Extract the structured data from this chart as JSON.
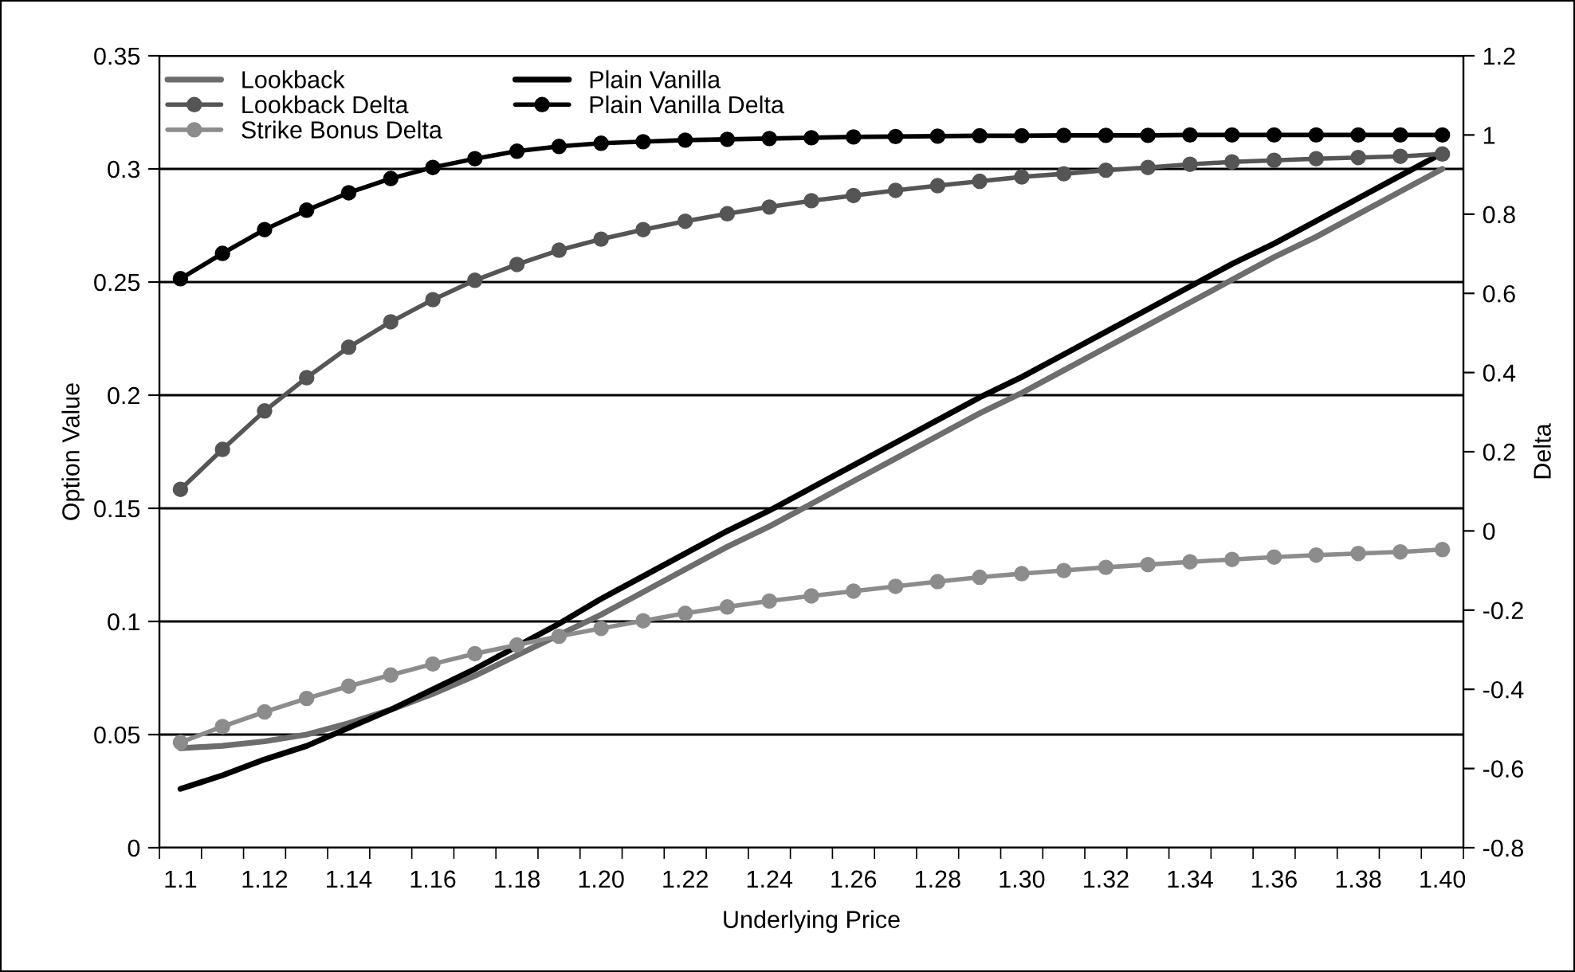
{
  "chart_data": {
    "type": "line",
    "xlabel": "Underlying Price",
    "ylabel": "Option Value",
    "y2label": "Delta",
    "categories": [
      "1.1",
      null,
      "1.12",
      null,
      "1.14",
      null,
      "1.16",
      null,
      "1.18",
      null,
      "1.20",
      null,
      "1.22",
      null,
      "1.24",
      null,
      "1.26",
      null,
      "1.28",
      null,
      "1.30",
      null,
      "1.32",
      null,
      "1.34",
      null,
      "1.36",
      null,
      "1.38",
      null,
      "1.40"
    ],
    "ylim": [
      0,
      0.35
    ],
    "yticks": [
      0,
      0.05,
      0.1,
      0.15,
      0.2,
      0.25,
      0.3,
      0.35
    ],
    "y2lim": [
      -0.8,
      1.2
    ],
    "y2ticks": [
      -0.8,
      -0.6,
      -0.4,
      -0.2,
      0,
      0.2,
      0.4,
      0.6,
      0.8,
      1,
      1.2
    ],
    "grid": "y",
    "legend": "top left",
    "line_style": "solid",
    "series": [
      {
        "name": "Lookback",
        "color": "#6d6d6d",
        "marker": "none",
        "values": [
          0.044,
          0.045,
          0.047,
          0.05,
          0.055,
          0.061,
          0.068,
          0.076,
          0.085,
          0.094,
          0.103,
          0.113,
          0.123,
          0.133,
          0.142,
          0.152,
          0.162,
          0.172,
          0.182,
          0.192,
          0.201,
          0.211,
          0.221,
          0.231,
          0.241,
          0.251,
          0.261,
          0.27,
          0.28,
          0.29,
          0.3
        ]
      },
      {
        "name": "Plain Vanilla",
        "color": "#000000",
        "marker": "none",
        "values": [
          0.026,
          0.032,
          0.039,
          0.045,
          0.053,
          0.061,
          0.07,
          0.079,
          0.089,
          0.099,
          0.11,
          0.12,
          0.13,
          0.14,
          0.149,
          0.159,
          0.169,
          0.179,
          0.189,
          0.199,
          0.208,
          0.218,
          0.228,
          0.238,
          0.248,
          0.258,
          0.267,
          0.277,
          0.287,
          0.297,
          0.307
        ]
      },
      {
        "name": "Lookback Delta",
        "color": "#555555",
        "marker": "circle",
        "axis": "y2",
        "values": [
          0.105,
          0.206,
          0.303,
          0.387,
          0.464,
          0.528,
          0.584,
          0.633,
          0.673,
          0.709,
          0.737,
          0.761,
          0.782,
          0.801,
          0.818,
          0.834,
          0.847,
          0.86,
          0.872,
          0.883,
          0.894,
          0.902,
          0.911,
          0.918,
          0.926,
          0.932,
          0.936,
          0.94,
          0.943,
          0.946,
          0.952
        ]
      },
      {
        "name": "Plain Vanilla Delta",
        "color": "#000000",
        "marker": "circle",
        "axis": "y2",
        "values": [
          0.637,
          0.701,
          0.761,
          0.81,
          0.854,
          0.89,
          0.918,
          0.94,
          0.959,
          0.971,
          0.979,
          0.983,
          0.987,
          0.989,
          0.991,
          0.993,
          0.995,
          0.996,
          0.997,
          0.998,
          0.998,
          0.999,
          0.999,
          0.999,
          1.0,
          1.0,
          1.0,
          1.0,
          1.0,
          1.0,
          1.0
        ]
      },
      {
        "name": "Strike Bonus Delta",
        "color": "#8c8c8c",
        "marker": "circle",
        "axis": "y2",
        "values": [
          -0.534,
          -0.494,
          -0.457,
          -0.423,
          -0.392,
          -0.364,
          -0.336,
          -0.31,
          -0.288,
          -0.266,
          -0.246,
          -0.227,
          -0.208,
          -0.192,
          -0.177,
          -0.164,
          -0.152,
          -0.14,
          -0.128,
          -0.117,
          -0.108,
          -0.1,
          -0.092,
          -0.085,
          -0.078,
          -0.072,
          -0.066,
          -0.061,
          -0.057,
          -0.053,
          -0.047
        ]
      }
    ]
  }
}
